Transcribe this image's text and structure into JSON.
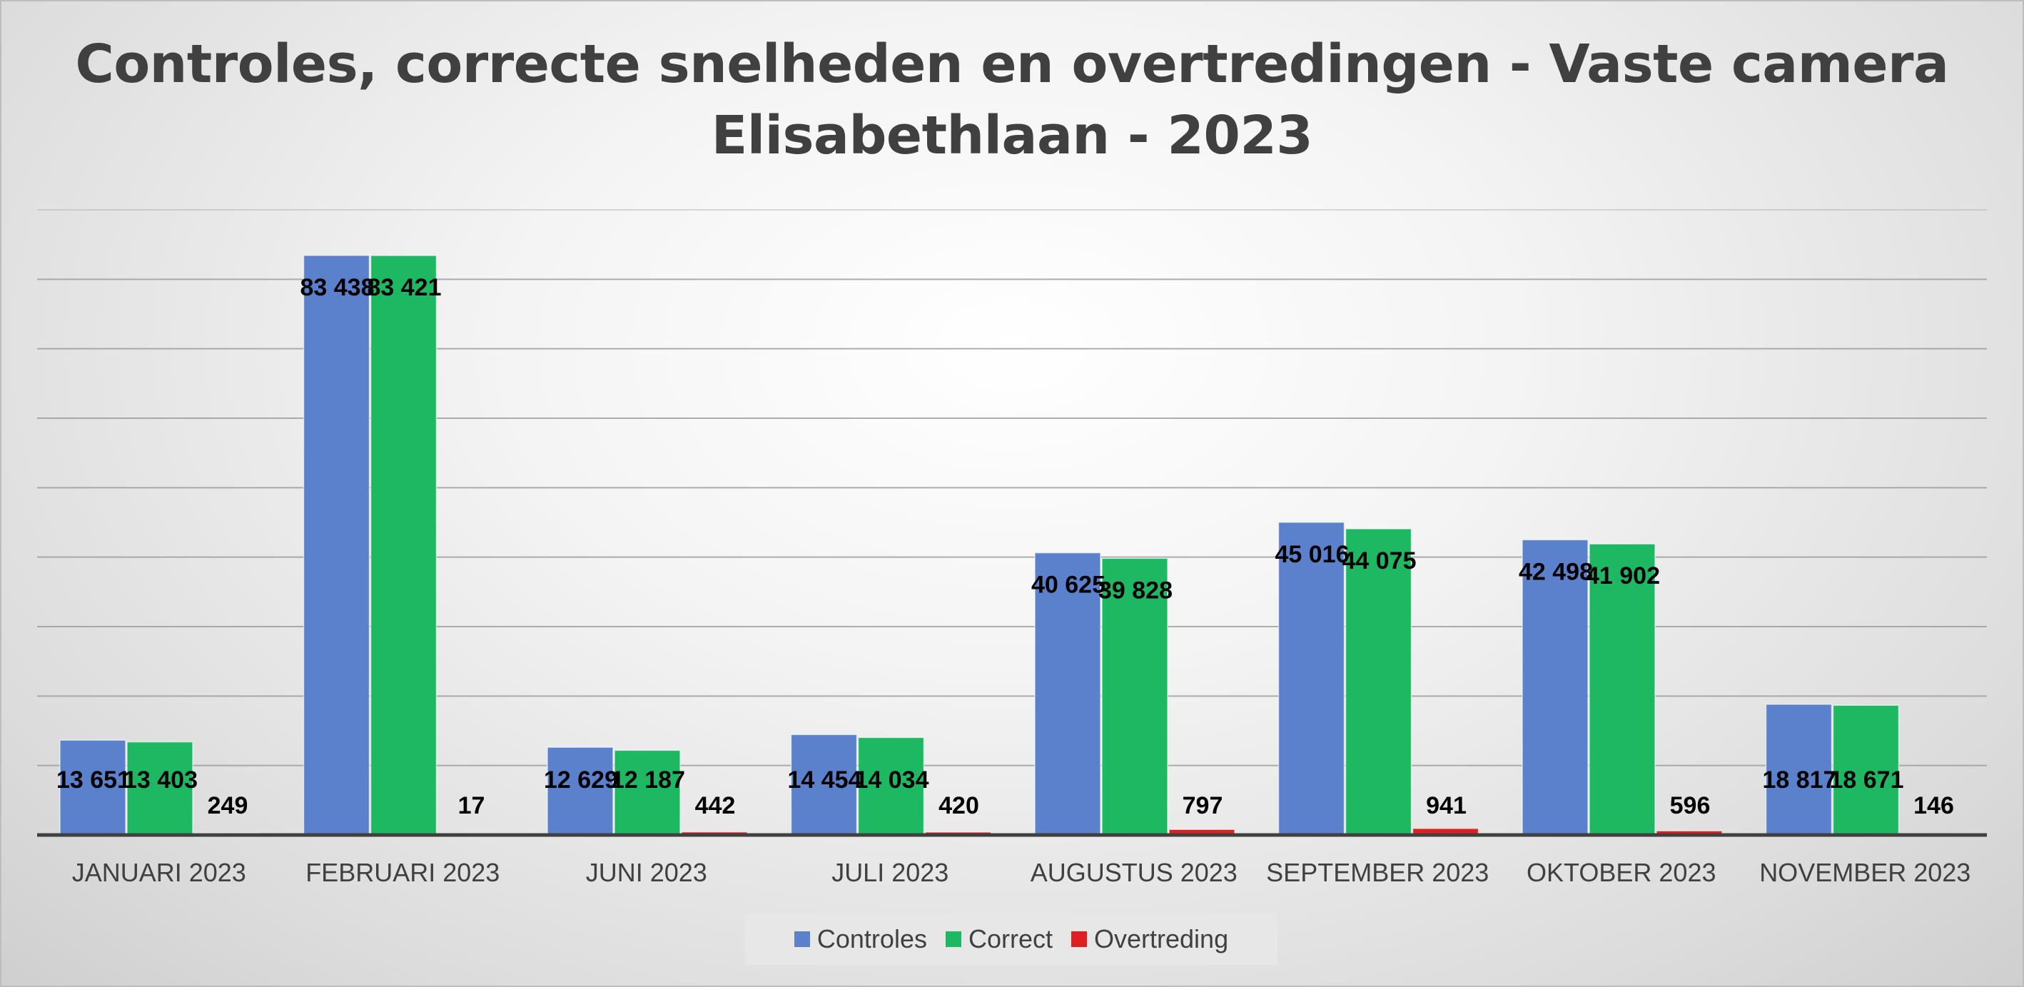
{
  "chart_data": {
    "type": "bar",
    "title_lines": [
      "Controles, correcte snelheden en overtredingen - Vaste camera",
      "Elisabethlaan - 2023"
    ],
    "categories": [
      "JANUARI 2023",
      "FEBRUARI 2023",
      "JUNI 2023",
      "JULI 2023",
      "AUGUSTUS 2023",
      "SEPTEMBER 2023",
      "OKTOBER 2023",
      "NOVEMBER 2023"
    ],
    "series": [
      {
        "name": "Controles",
        "color": "#5b80cc",
        "values": [
          13651,
          83438,
          12629,
          14454,
          40625,
          45016,
          42498,
          18817
        ],
        "labels": [
          "13 651",
          "83 438",
          "12 629",
          "14 454",
          "40 625",
          "45 016",
          "42 498",
          "18 817"
        ]
      },
      {
        "name": "Correct",
        "color": "#1fb862",
        "values": [
          13403,
          83421,
          12187,
          14034,
          39828,
          44075,
          41902,
          18671
        ],
        "labels": [
          "13 403",
          "83 421",
          "12 187",
          "14 034",
          "39 828",
          "44 075",
          "41 902",
          "18 671"
        ]
      },
      {
        "name": "Overtreding",
        "color": "#e02020",
        "values": [
          249,
          17,
          442,
          420,
          797,
          941,
          596,
          146
        ],
        "labels": [
          "249",
          "17",
          "442",
          "420",
          "797",
          "941",
          "596",
          "146"
        ]
      }
    ],
    "ylim": [
      0,
      90000
    ],
    "gridlines": true,
    "y_axis_labels_shown": false,
    "legend_position": "bottom"
  }
}
